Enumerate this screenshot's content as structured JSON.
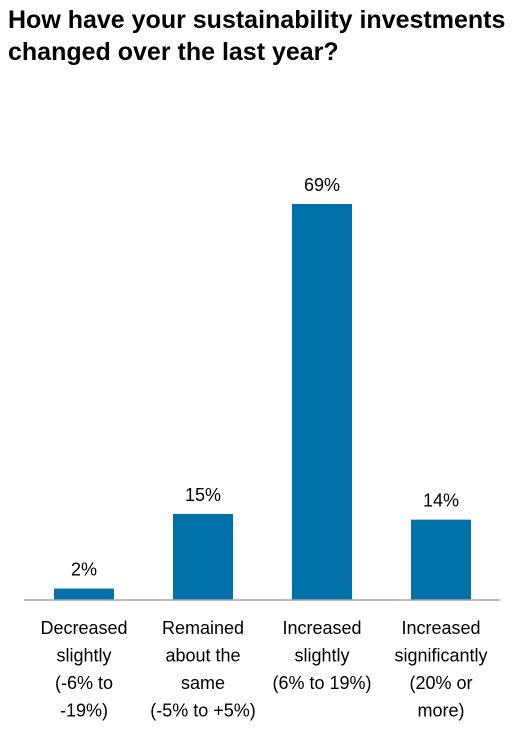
{
  "chart_data": {
    "type": "bar",
    "title": "How have your sustainability investments changed over the last year?",
    "categories": [
      [
        "Decreased",
        "slightly",
        "(-6% to",
        "-19%)"
      ],
      [
        "Remained",
        "about the",
        "same",
        "(-5% to +5%)"
      ],
      [
        "Increased",
        "slightly",
        "(6% to 19%)"
      ],
      [
        "Increased",
        "significantly",
        "(20% or",
        "more)"
      ]
    ],
    "values": [
      2,
      15,
      69,
      14
    ],
    "value_labels": [
      "2%",
      "15%",
      "69%",
      "14%"
    ],
    "ylim": [
      0,
      69
    ],
    "grid": false,
    "bar_color": "#0070A8",
    "axis_color": "#A6A6A6"
  }
}
